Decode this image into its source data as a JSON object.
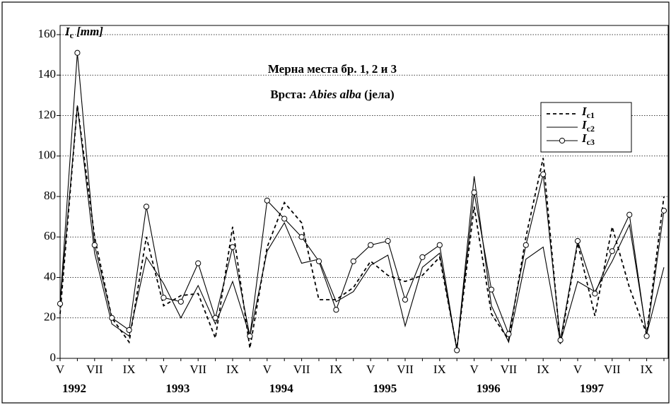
{
  "chart_data": {
    "type": "line",
    "title": "Мерна места бр. 1, 2 и 3",
    "subtitle": [
      "Врста:",
      "Abies alba",
      "(јела)"
    ],
    "ylabel": "Ic [mm]",
    "categories": [
      "V",
      null,
      "VII",
      null,
      "IX",
      null,
      "V",
      null,
      "VII",
      null,
      "IX",
      null,
      "V",
      null,
      "VII",
      null,
      "IX",
      null,
      "V",
      null,
      "VII",
      null,
      "IX",
      null,
      "V",
      null,
      "VII",
      null,
      "IX",
      null,
      "V",
      null,
      "VII",
      null,
      "IX",
      null
    ],
    "years": [
      "1992",
      "1993",
      "1994",
      "1995",
      "1996",
      "1997"
    ],
    "series": [
      {
        "name": "Ic1",
        "color": "#000000",
        "linestyle": "--",
        "marker": null,
        "values": [
          22,
          125,
          60,
          20,
          8,
          60,
          26,
          31,
          32,
          10,
          65,
          5,
          55,
          77,
          67,
          29,
          29,
          35,
          48,
          41,
          38,
          41,
          50,
          5,
          75,
          22,
          9,
          60,
          99,
          7,
          57,
          21,
          65,
          35,
          12,
          80
        ]
      },
      {
        "name": "Ic2",
        "color": "#000000",
        "linestyle": "-",
        "marker": null,
        "values": [
          27,
          125,
          52,
          17,
          11,
          50,
          37,
          20,
          36,
          17,
          38,
          11,
          53,
          67,
          47,
          49,
          28,
          33,
          46,
          51,
          16,
          45,
          52,
          4,
          90,
          26,
          8,
          49,
          55,
          8,
          38,
          33,
          48,
          66,
          12,
          45
        ]
      },
      {
        "name": "Ic3",
        "color": "#000000",
        "linestyle": "-",
        "marker": "o",
        "values": [
          27,
          151,
          56,
          20,
          14,
          75,
          30,
          28,
          47,
          20,
          55,
          11,
          78,
          69,
          60,
          48,
          24,
          48,
          56,
          58,
          29,
          50,
          56,
          4,
          82,
          34,
          12,
          56,
          91,
          9,
          58,
          32,
          53,
          71,
          11,
          73
        ]
      }
    ],
    "ylim": [
      0,
      160
    ],
    "yticks": [
      0,
      20,
      40,
      60,
      80,
      100,
      120,
      140,
      160
    ],
    "grid": true,
    "legend": "upper right"
  }
}
